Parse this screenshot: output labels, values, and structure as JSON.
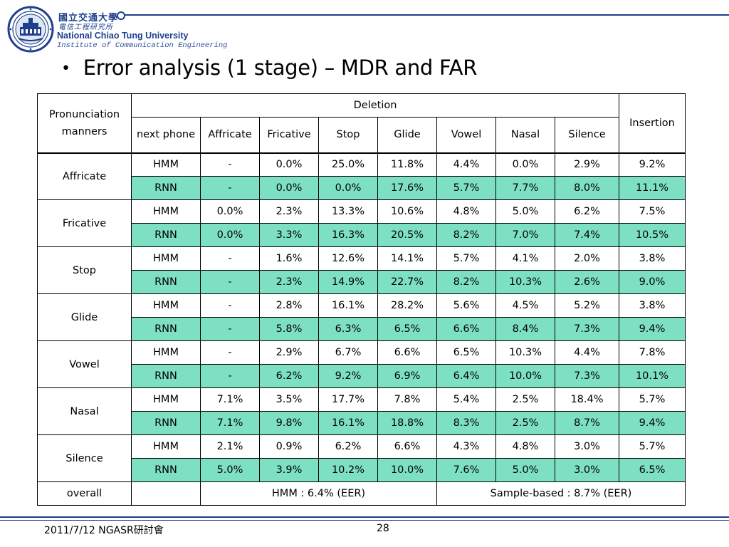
{
  "header": {
    "university_zh": "國立交通大學",
    "institute_zh": "電信工程研究所",
    "university_en": "National Chiao Tung University",
    "institute_en": "Institute of Communication Engineering",
    "brand_color": "#1f3f8f"
  },
  "slide": {
    "bullet": "•",
    "title": "Error analysis (1 stage) – MDR and FAR"
  },
  "table": {
    "header": {
      "manners_label": "Pronunciation manners",
      "deletion_label": "Deletion",
      "insertion_label": "Insertion",
      "deletion_columns": [
        "next phone",
        "Affricate",
        "Fricative",
        "Stop",
        "Glide",
        "Vowel",
        "Nasal",
        "Silence"
      ]
    },
    "rnn_highlight_color": "#7ee0c3",
    "groups": [
      {
        "manner": "Affricate",
        "rows": [
          {
            "model": "HMM",
            "values": [
              "-",
              "0.0%",
              "25.0%",
              "11.8%",
              "4.4%",
              "0.0%",
              "2.9%",
              "9.2%"
            ]
          },
          {
            "model": "RNN",
            "values": [
              "-",
              "0.0%",
              "0.0%",
              "17.6%",
              "5.7%",
              "7.7%",
              "8.0%",
              "11.1%"
            ]
          }
        ]
      },
      {
        "manner": "Fricative",
        "rows": [
          {
            "model": "HMM",
            "values": [
              "0.0%",
              "2.3%",
              "13.3%",
              "10.6%",
              "4.8%",
              "5.0%",
              "6.2%",
              "7.5%"
            ]
          },
          {
            "model": "RNN",
            "values": [
              "0.0%",
              "3.3%",
              "16.3%",
              "20.5%",
              "8.2%",
              "7.0%",
              "7.4%",
              "10.5%"
            ]
          }
        ]
      },
      {
        "manner": "Stop",
        "rows": [
          {
            "model": "HMM",
            "values": [
              "-",
              "1.6%",
              "12.6%",
              "14.1%",
              "5.7%",
              "4.1%",
              "2.0%",
              "3.8%"
            ]
          },
          {
            "model": "RNN",
            "values": [
              "-",
              "2.3%",
              "14.9%",
              "22.7%",
              "8.2%",
              "10.3%",
              "2.6%",
              "9.0%"
            ]
          }
        ]
      },
      {
        "manner": "Glide",
        "rows": [
          {
            "model": "HMM",
            "values": [
              "-",
              "2.8%",
              "16.1%",
              "28.2%",
              "5.6%",
              "4.5%",
              "5.2%",
              "3.8%"
            ]
          },
          {
            "model": "RNN",
            "values": [
              "-",
              "5.8%",
              "6.3%",
              "6.5%",
              "6.6%",
              "8.4%",
              "7.3%",
              "9.4%"
            ]
          }
        ]
      },
      {
        "manner": "Vowel",
        "rows": [
          {
            "model": "HMM",
            "values": [
              "-",
              "2.9%",
              "6.7%",
              "6.6%",
              "6.5%",
              "10.3%",
              "4.4%",
              "7.8%"
            ]
          },
          {
            "model": "RNN",
            "values": [
              "-",
              "6.2%",
              "9.2%",
              "6.9%",
              "6.4%",
              "10.0%",
              "7.3%",
              "10.1%"
            ]
          }
        ]
      },
      {
        "manner": "Nasal",
        "rows": [
          {
            "model": "HMM",
            "values": [
              "7.1%",
              "3.5%",
              "17.7%",
              "7.8%",
              "5.4%",
              "2.5%",
              "18.4%",
              "5.7%"
            ]
          },
          {
            "model": "RNN",
            "values": [
              "7.1%",
              "9.8%",
              "16.1%",
              "18.8%",
              "8.3%",
              "2.5%",
              "8.7%",
              "9.4%"
            ]
          }
        ]
      },
      {
        "manner": "Silence",
        "rows": [
          {
            "model": "HMM",
            "values": [
              "2.1%",
              "0.9%",
              "6.2%",
              "6.6%",
              "4.3%",
              "4.8%",
              "3.0%",
              "5.7%"
            ]
          },
          {
            "model": "RNN",
            "values": [
              "5.0%",
              "3.9%",
              "10.2%",
              "10.0%",
              "7.6%",
              "5.0%",
              "3.0%",
              "6.5%"
            ]
          }
        ]
      }
    ],
    "overall": {
      "label": "overall",
      "hmm": "HMM : 6.4% (EER)",
      "sample": "Sample-based : 8.7% (EER)"
    }
  },
  "footer": {
    "date_event": "2011/7/12 NGASR研討會",
    "page_number": "28"
  }
}
